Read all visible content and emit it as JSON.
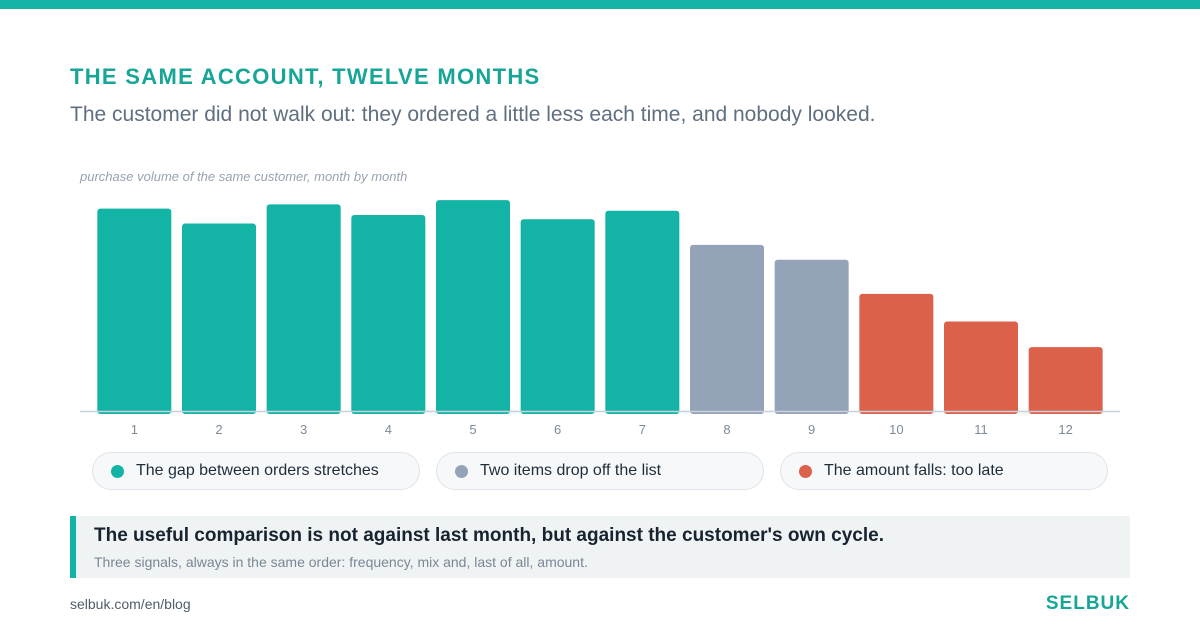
{
  "header": {
    "title": "THE SAME ACCOUNT, TWELVE MONTHS",
    "subtitle": "The customer did not walk out: they ordered a little less each time, and nobody looked."
  },
  "colors": {
    "accent": "#13b3a5",
    "phase_frequency": "#13b3a5",
    "phase_mix": "#95a3b9",
    "phase_amount": "#dc614b",
    "axis": "#c8d0d8",
    "tick_label": "#7d8a97"
  },
  "chart_data": {
    "type": "bar",
    "title": "purchase volume of the same customer, month by month",
    "xlabel": "",
    "ylabel": "",
    "ylim": [
      0,
      100
    ],
    "grid": false,
    "categories": [
      "1",
      "2",
      "3",
      "4",
      "5",
      "6",
      "7",
      "8",
      "9",
      "10",
      "11",
      "12"
    ],
    "values": [
      95,
      88,
      97,
      92,
      99,
      90,
      94,
      78,
      71,
      55,
      42,
      30
    ],
    "bar_phase": [
      "frequency",
      "frequency",
      "frequency",
      "frequency",
      "frequency",
      "frequency",
      "frequency",
      "mix",
      "mix",
      "amount",
      "amount",
      "amount"
    ],
    "legend_placement": "bottom",
    "legend": [
      {
        "phase": "frequency",
        "label": "The gap between orders stretches",
        "color": "#13b3a5"
      },
      {
        "phase": "mix",
        "label": "Two items drop off the list",
        "color": "#95a3b9"
      },
      {
        "phase": "amount",
        "label": "The amount falls: too late",
        "color": "#dc614b"
      }
    ]
  },
  "callout": {
    "headline": "The useful comparison is not against last month, but against the customer's own cycle.",
    "detail": "Three signals, always in the same order: frequency, mix and, last of all, amount."
  },
  "footer": {
    "url": "selbuk.com/en/blog",
    "brand": "SELBUK"
  }
}
